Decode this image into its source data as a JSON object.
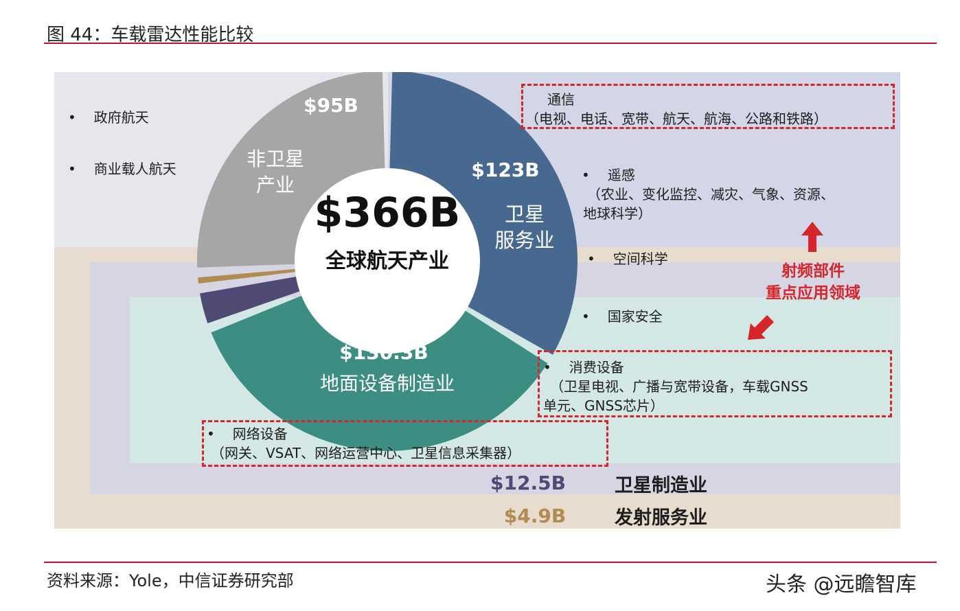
{
  "figure_title": "图 44：车载雷达性能比较",
  "source": "资料来源：Yole，中信证券研究部",
  "watermark": "头条 @远瞻智库",
  "colors": {
    "satellite_services": "#476990",
    "ground_equipment": "#3d8e82",
    "non_satellite": "#a6a6a6",
    "satellite_manufacturing": "#4f4a73",
    "launch_services": "#b08c52",
    "highlight_red": "#d6262b"
  },
  "chart_data": {
    "type": "pie",
    "title": "",
    "center_value": "$366B",
    "center_label": "全球航天产业",
    "slices": [
      {
        "name": "卫星服务业",
        "label": "卫星\n服务业",
        "value": 123,
        "value_label": "$123B"
      },
      {
        "name": "地面设备制造业",
        "label": "地面设备制造业",
        "value": 130.3,
        "value_label": "$130.3B"
      },
      {
        "name": "卫星制造业",
        "label": "卫星制造业",
        "value": 12.5,
        "value_label": "$12.5B"
      },
      {
        "name": "发射服务业",
        "label": "发射服务业",
        "value": 4.9,
        "value_label": "$4.9B"
      },
      {
        "name": "非卫星产业",
        "label": "非卫星\n产业",
        "value": 95,
        "value_label": "$95B"
      }
    ]
  },
  "non_satellite_items": [
    "政府航天",
    "商业载人航天"
  ],
  "satellite_service_items": {
    "comm_title": "通信",
    "comm_detail": "（电视、电话、宽带、航天、航海、公路和铁路）",
    "remote_title": "遥感",
    "remote_detail_1": "（农业、变化监控、减灾、气象、资源、",
    "remote_detail_2": "地球科学）",
    "space_science": "空间科学",
    "national_security": "国家安全"
  },
  "ground_items": {
    "consumer_title": "消费设备",
    "consumer_detail_1": "（卫星电视、广播与宽带设备，车载GNSS",
    "consumer_detail_2": "单元、GNSS芯片）",
    "network_title": "网络设备",
    "network_detail": "（网关、VSAT、网络运营中心、卫星信息采集器）"
  },
  "rf_callout": {
    "line1": "射频部件",
    "line2": "重点应用领域"
  },
  "bullet_symbol": "•"
}
